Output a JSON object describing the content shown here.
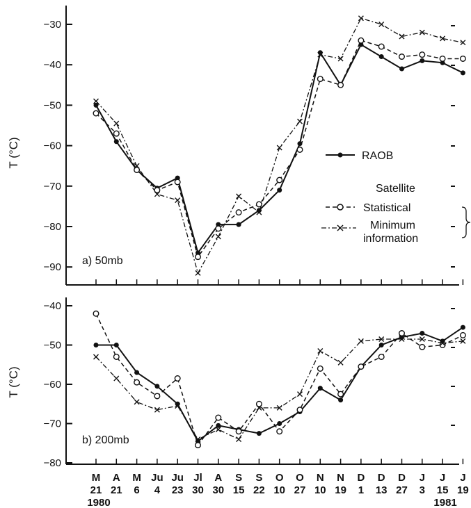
{
  "figure": {
    "x_categories": [
      {
        "month": "M",
        "day": "21",
        "year": "1980"
      },
      {
        "month": "A",
        "day": "21",
        "year": ""
      },
      {
        "month": "M",
        "day": "6",
        "year": ""
      },
      {
        "month": "Ju",
        "day": "4",
        "year": ""
      },
      {
        "month": "Ju",
        "day": "23",
        "year": ""
      },
      {
        "month": "Jl",
        "day": "30",
        "year": ""
      },
      {
        "month": "A",
        "day": "30",
        "year": ""
      },
      {
        "month": "S",
        "day": "15",
        "year": ""
      },
      {
        "month": "S",
        "day": "22",
        "year": ""
      },
      {
        "month": "O",
        "day": "10",
        "year": ""
      },
      {
        "month": "O",
        "day": "27",
        "year": ""
      },
      {
        "month": "N",
        "day": "10",
        "year": ""
      },
      {
        "month": "N",
        "day": "19",
        "year": ""
      },
      {
        "month": "D",
        "day": "1",
        "year": ""
      },
      {
        "month": "D",
        "day": "13",
        "year": ""
      },
      {
        "month": "D",
        "day": "27",
        "year": ""
      },
      {
        "month": "J",
        "day": "3",
        "year": ""
      },
      {
        "month": "J",
        "day": "15",
        "year": "1981"
      },
      {
        "month": "J",
        "day": "19",
        "year": ""
      }
    ],
    "legend": {
      "raob": "RAOB",
      "satellite_heading": "Satellite",
      "statistical": "Statistical",
      "minimum_line1": "Minimum",
      "minimum_line2": "information"
    },
    "colors": {
      "ink": "#111111",
      "background": "#ffffff"
    }
  },
  "chart_data": [
    {
      "type": "line",
      "panel_label": "a) 50mb",
      "ylabel": "T (°C)",
      "ylim": [
        -95,
        -25
      ],
      "yticks": [
        -30,
        -40,
        -50,
        -60,
        -70,
        -80,
        -90
      ],
      "categories": [
        "M 21 1980",
        "A 21",
        "M 6",
        "Ju 4",
        "Ju 23",
        "Jl 30",
        "A 30",
        "S 15",
        "S 22",
        "O 10",
        "O 27",
        "N 10",
        "N 19",
        "D 1",
        "D 13",
        "D 27",
        "J 3",
        "J 15 1981",
        "J 19"
      ],
      "series": [
        {
          "name": "RAOB",
          "values": [
            -50,
            -59,
            -66,
            -70.5,
            -68,
            -86.5,
            -79.5,
            -79.5,
            -76,
            -71,
            -59.5,
            -37,
            -45,
            -35,
            -38,
            -41,
            -39,
            -39.5,
            -42
          ]
        },
        {
          "name": "Statistical",
          "values": [
            -52,
            -57,
            -66,
            -71,
            -69,
            -87.5,
            -80.5,
            -76.5,
            -74.5,
            -68.5,
            -61,
            -43.5,
            -45,
            -34,
            -35.5,
            -38,
            -37.5,
            -38.5,
            -38.5
          ]
        },
        {
          "name": "Minimum information",
          "values": [
            -49,
            -54.5,
            -65,
            -72,
            -73.5,
            -91.5,
            -82.5,
            -72.5,
            -76.5,
            -60.5,
            -54,
            -37.5,
            -38.5,
            -28.5,
            -30,
            -33,
            -32,
            -33.5,
            -34.5
          ]
        }
      ]
    },
    {
      "type": "line",
      "panel_label": "b) 200mb",
      "ylabel": "T (°C)",
      "ylim": [
        -80,
        -40
      ],
      "yticks": [
        -40,
        -50,
        -60,
        -70,
        -80
      ],
      "categories": [
        "M 21 1980",
        "A 21",
        "M 6",
        "Ju 4",
        "Ju 23",
        "Jl 30",
        "A 30",
        "S 15",
        "S 22",
        "O 10",
        "O 27",
        "N 10",
        "N 19",
        "D 1",
        "D 13",
        "D 27",
        "J 3",
        "J 15 1981",
        "J 19"
      ],
      "series": [
        {
          "name": "RAOB",
          "values": [
            -50,
            -50,
            -57,
            -60.5,
            -65,
            -74.5,
            -70.5,
            -71.5,
            -72.5,
            -70,
            -67,
            -61,
            -64,
            -55.5,
            -50,
            -48,
            -47,
            -49,
            -45.5
          ]
        },
        {
          "name": "Statistical",
          "values": [
            -42,
            -53,
            -59.5,
            -63,
            -58.5,
            -75.5,
            -68.5,
            -72,
            -65,
            -72,
            -66.5,
            -56,
            -62.5,
            -55.5,
            -53,
            -47,
            -50.5,
            -50,
            -47.5
          ]
        },
        {
          "name": "Minimum information",
          "values": [
            -53,
            -58.5,
            -64.5,
            -66.5,
            -65.5,
            -74,
            -71.5,
            -74,
            -66,
            -66,
            -62.5,
            -51.5,
            -54.5,
            -49,
            -48.5,
            -48.5,
            -48.5,
            -49.5,
            -49
          ]
        }
      ]
    }
  ]
}
